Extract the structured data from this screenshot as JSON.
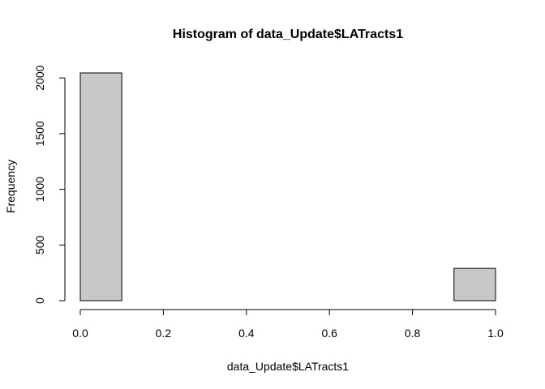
{
  "chart_data": {
    "type": "bar",
    "title": "Histogram of data_Update$LATracts1",
    "xlabel": "data_Update$LATracts1",
    "ylabel": "Frequency",
    "bin_edges": [
      0.0,
      0.1,
      0.2,
      0.3,
      0.4,
      0.5,
      0.6,
      0.7,
      0.8,
      0.9,
      1.0
    ],
    "values": [
      2045,
      0,
      0,
      0,
      0,
      0,
      0,
      0,
      0,
      290
    ],
    "xlim": [
      0,
      1
    ],
    "ylim": [
      0,
      2045
    ],
    "x_ticks": [
      "0.0",
      "0.2",
      "0.4",
      "0.6",
      "0.8",
      "1.0"
    ],
    "y_ticks": [
      "0",
      "500",
      "1000",
      "1500",
      "2000"
    ],
    "grid": false,
    "bar_fill": "#c8c8c8",
    "bar_stroke": "#000000"
  }
}
